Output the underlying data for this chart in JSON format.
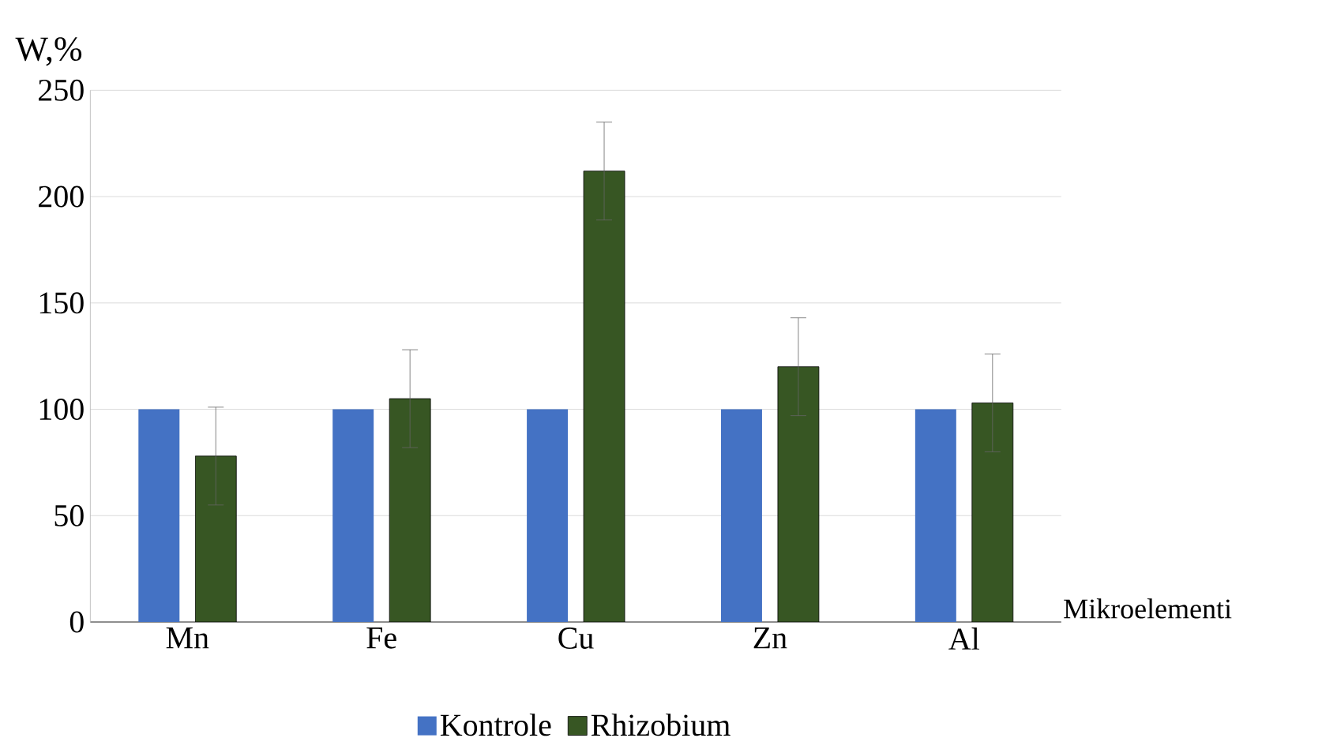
{
  "chart_data": {
    "type": "bar",
    "ylabel": "W,%",
    "xlabel": "Mikroelementi",
    "categories": [
      "Mn",
      "Fe",
      "Cu",
      "Zn",
      "Al"
    ],
    "series": [
      {
        "name": "Kontrole",
        "color": "#4472c4",
        "values": [
          100,
          100,
          100,
          100,
          100
        ]
      },
      {
        "name": "Rhizobium",
        "color": "#375623",
        "values": [
          78,
          105,
          212,
          120,
          103
        ],
        "errors": [
          23,
          23,
          23,
          23,
          23
        ]
      }
    ],
    "ylim": [
      0,
      250
    ],
    "yticks": [
      0,
      50,
      100,
      150,
      200,
      250
    ],
    "grid": "y",
    "legend": "bottom"
  }
}
